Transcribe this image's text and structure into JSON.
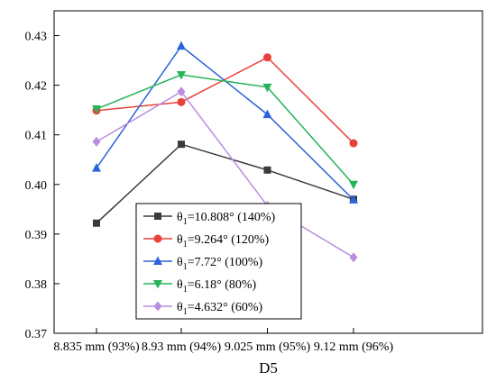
{
  "chart_data": {
    "type": "line",
    "title": "",
    "xlabel": "D5",
    "ylabel": "",
    "categories": [
      "8.835 mm (93%)",
      "8.93 mm (94%)",
      "9.025 mm (95%)",
      "9.12 mm (96%)"
    ],
    "ylim": [
      0.37,
      0.435
    ],
    "yticks": [
      "0.37",
      "0.38",
      "0.39",
      "0.40",
      "0.41",
      "0.42",
      "0.43"
    ],
    "grid": false,
    "legend_position": "lower-left inside",
    "series": [
      {
        "name_prefix": "θ",
        "name_sub": "1",
        "name_rest": "=10.808° (140%)",
        "marker": "square",
        "color": "#3a3a3a",
        "values": [
          0.3922,
          0.4081,
          0.4029,
          0.397
        ]
      },
      {
        "name_prefix": "θ",
        "name_sub": "1",
        "name_rest": "=9.264° (120%)",
        "marker": "circle",
        "color": "#e8413a",
        "values": [
          0.4149,
          0.4166,
          0.4256,
          0.4083
        ]
      },
      {
        "name_prefix": "θ",
        "name_sub": "1",
        "name_rest": "=7.72° (100%)",
        "marker": "triangle-up",
        "color": "#2b63d9",
        "values": [
          0.4033,
          0.4279,
          0.4141,
          0.3969
        ]
      },
      {
        "name_prefix": "θ",
        "name_sub": "1",
        "name_rest": "=6.18° (80%)",
        "marker": "triangle-down",
        "color": "#27b35a",
        "values": [
          0.4152,
          0.4221,
          0.4196,
          0.4
        ]
      },
      {
        "name_prefix": "θ",
        "name_sub": "1",
        "name_rest": "=4.632° (60%)",
        "marker": "diamond",
        "color": "#b98ee0",
        "values": [
          0.4086,
          0.4187,
          0.3957,
          0.3853
        ]
      }
    ]
  }
}
